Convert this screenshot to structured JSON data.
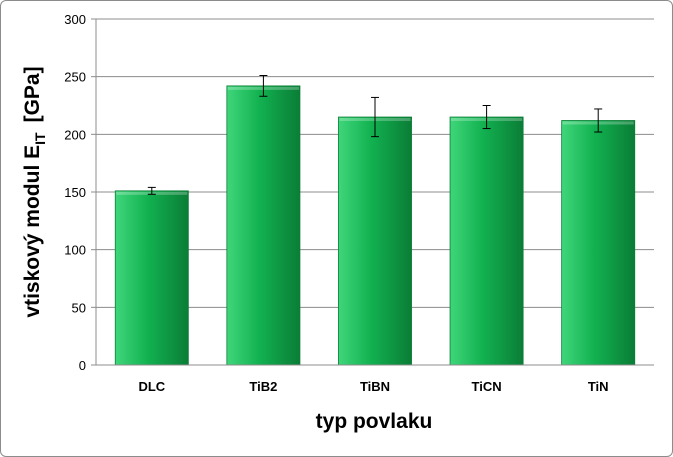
{
  "chart_data": {
    "type": "bar",
    "categories": [
      "DLC",
      "TiB2",
      "TiBN",
      "TiCN",
      "TiN"
    ],
    "values": [
      151,
      242,
      215,
      215,
      212
    ],
    "error_bars": [
      3,
      9,
      17,
      10,
      10
    ],
    "xlabel": "typ povlaku",
    "ylabel": {
      "prefix": "vtiskový modul E",
      "subscript": "IT",
      "suffix": "[GPa]"
    },
    "ylim": [
      0,
      300
    ],
    "yticks": [
      0,
      50,
      100,
      150,
      200,
      250,
      300
    ],
    "grid": true,
    "legend": "none",
    "colors": {
      "bar_light": "#3fd67a",
      "bar_mid": "#12b150",
      "bar_dark": "#0a7d36",
      "gridline": "#8c8c8c",
      "axis": "#8c8c8c",
      "error_bar": "#000000"
    }
  }
}
